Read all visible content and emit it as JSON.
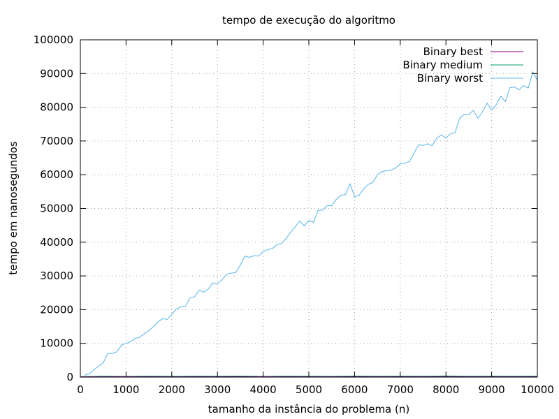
{
  "chart_data": {
    "type": "line",
    "title": "tempo de execução do algoritmo",
    "xlabel": "tamanho da instância do problema (n)",
    "ylabel": "tempo em nanosegundos",
    "xlim": [
      0,
      10000
    ],
    "ylim": [
      0,
      100000
    ],
    "xticks": [
      0,
      1000,
      2000,
      3000,
      4000,
      5000,
      6000,
      7000,
      8000,
      9000,
      10000
    ],
    "yticks": [
      0,
      10000,
      20000,
      30000,
      40000,
      50000,
      60000,
      70000,
      80000,
      90000,
      100000
    ],
    "grid": true,
    "legend_position": "top-right",
    "series": [
      {
        "name": "Binary best",
        "color": "#94008f",
        "x": [
          0,
          1000,
          2000,
          3000,
          4000,
          5000,
          6000,
          7000,
          8000,
          9000,
          10000
        ],
        "values": [
          100,
          120,
          110,
          130,
          120,
          110,
          120,
          130,
          120,
          110,
          120
        ]
      },
      {
        "name": "Binary medium",
        "color": "#009e73",
        "x": [
          0,
          500,
          1000,
          1500,
          2000,
          2500,
          3000,
          3500,
          4000,
          4500,
          5000,
          5500,
          6000,
          6500,
          7000,
          7500,
          8000,
          8500,
          9000,
          9500,
          10000
        ],
        "values": [
          150,
          250,
          200,
          300,
          220,
          280,
          240,
          320,
          210,
          300,
          260,
          230,
          310,
          250,
          280,
          240,
          330,
          260,
          300,
          250,
          280
        ]
      },
      {
        "name": "Binary worst",
        "color": "#56b4e9",
        "x": [
          100,
          200,
          300,
          400,
          500,
          600,
          700,
          800,
          900,
          1000,
          1100,
          1200,
          1300,
          1400,
          1500,
          1600,
          1700,
          1800,
          1900,
          2000,
          2100,
          2200,
          2300,
          2400,
          2500,
          2600,
          2700,
          2800,
          2900,
          3000,
          3100,
          3200,
          3300,
          3400,
          3500,
          3600,
          3700,
          3800,
          3900,
          4000,
          4100,
          4200,
          4300,
          4400,
          4500,
          4600,
          4700,
          4800,
          4900,
          5000,
          5100,
          5200,
          5300,
          5400,
          5500,
          5600,
          5700,
          5800,
          5900,
          6000,
          6100,
          6200,
          6300,
          6400,
          6500,
          6600,
          6700,
          6800,
          6900,
          7000,
          7100,
          7200,
          7300,
          7400,
          7500,
          7600,
          7700,
          7800,
          7900,
          8000,
          8100,
          8200,
          8300,
          8400,
          8500,
          8600,
          8700,
          8800,
          8900,
          9000,
          9100,
          9200,
          9300,
          9400,
          9500,
          9600,
          9700,
          9800,
          9900,
          10000
        ],
        "values": [
          600,
          1000,
          2200,
          3300,
          4200,
          7000,
          7000,
          7500,
          9500,
          10000,
          10500,
          11500,
          11800,
          12900,
          13800,
          15000,
          16400,
          17300,
          17100,
          18600,
          20200,
          20800,
          21000,
          23500,
          23800,
          25800,
          25200,
          26100,
          27900,
          27700,
          28800,
          30500,
          30800,
          31000,
          33200,
          35900,
          35500,
          36000,
          35900,
          37200,
          37800,
          38100,
          39300,
          39600,
          41100,
          42900,
          44500,
          46300,
          44800,
          46400,
          45900,
          49400,
          49500,
          50800,
          50800,
          52700,
          53900,
          54100,
          57300,
          53500,
          53900,
          55800,
          57100,
          57700,
          60000,
          60900,
          61200,
          61400,
          62000,
          63200,
          63400,
          63900,
          66300,
          68900,
          68700,
          69200,
          68600,
          70900,
          71800,
          70900,
          72100,
          72500,
          76700,
          77900,
          77800,
          79100,
          76700,
          78600,
          81200,
          79200,
          80700,
          83300,
          81700,
          85800,
          86000,
          85200,
          86400,
          85700,
          90500,
          88000
        ]
      }
    ]
  }
}
